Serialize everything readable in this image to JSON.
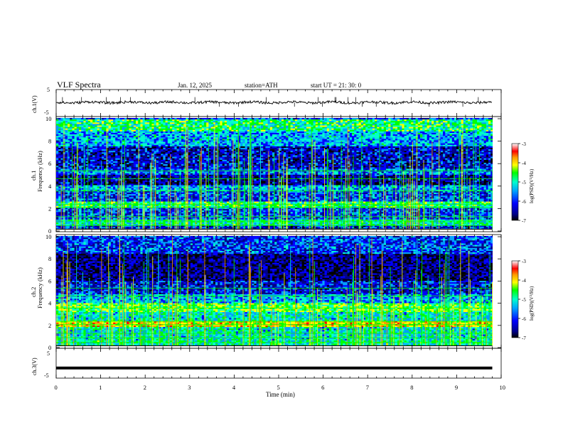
{
  "header": {
    "title": "VLF  Spectra",
    "date": "Jan.  12,  2025",
    "station": "station=ATH",
    "start": "start  UT  =    21: 30: 0"
  },
  "colors": {
    "colormap": [
      "#ffffff",
      "#ff0000",
      "#ff9900",
      "#ffff00",
      "#00ff00",
      "#00ffcc",
      "#00a0ff",
      "#0000ff",
      "#000088",
      "#000000"
    ],
    "waveform": "#000000",
    "axes": "#000000"
  },
  "chart_data": [
    {
      "type": "line",
      "panel": "ch1-waveform",
      "ylabel": "ch.1(V)",
      "ylim": [
        -5,
        5
      ],
      "yticks": [
        "5",
        "-5"
      ],
      "x_range_min": [
        0,
        9.8
      ],
      "level_v": 0.3,
      "peak_to_peak_v": 1.2
    },
    {
      "type": "heatmap",
      "panel": "ch1-spectrogram",
      "ylabel": "Frequency  (kHz)",
      "channel_label": "ch.1",
      "ylim": [
        0,
        10
      ],
      "yticks": [
        "0",
        "2",
        "4",
        "6",
        "8",
        "10"
      ],
      "x_range_min": [
        0,
        9.8
      ],
      "colorbar": {
        "label": "log(PSD)(V²/Hz)",
        "range": [
          -7,
          -3
        ],
        "ticks": [
          "-3",
          "-4",
          "-5",
          "-6",
          "-7"
        ]
      },
      "bands_khz_log_psd": [
        [
          0.0,
          0.5,
          -6.2
        ],
        [
          0.5,
          1.0,
          -5.2
        ],
        [
          1.0,
          2.0,
          -6.0
        ],
        [
          2.0,
          2.6,
          -5.0
        ],
        [
          2.6,
          3.5,
          -6.0
        ],
        [
          3.5,
          4.0,
          -5.6
        ],
        [
          4.0,
          5.0,
          -6.5
        ],
        [
          5.0,
          5.5,
          -5.8
        ],
        [
          5.5,
          7.5,
          -6.3
        ],
        [
          7.5,
          8.8,
          -5.6
        ],
        [
          8.8,
          10.0,
          -5.0
        ]
      ]
    },
    {
      "type": "heatmap",
      "panel": "ch2-spectrogram",
      "ylabel": "Frequency  (kHz)",
      "channel_label": "ch.2",
      "ylim": [
        0,
        10
      ],
      "yticks": [
        "0",
        "2",
        "4",
        "6",
        "8",
        "10"
      ],
      "x_range_min": [
        0,
        9.8
      ],
      "colorbar": {
        "label": "log(PSD)(V²/Hz)",
        "range": [
          -7,
          -3
        ],
        "ticks": [
          "-3",
          "-4",
          "-5",
          "-6",
          "-7"
        ]
      },
      "bands_khz_log_psd": [
        [
          0.0,
          0.6,
          -5.2
        ],
        [
          0.6,
          1.8,
          -5.3
        ],
        [
          1.8,
          2.3,
          -4.2
        ],
        [
          2.3,
          3.2,
          -5.3
        ],
        [
          3.2,
          4.0,
          -4.8
        ],
        [
          4.0,
          4.8,
          -5.6
        ],
        [
          4.8,
          6.0,
          -6.2
        ],
        [
          6.0,
          8.5,
          -6.6
        ],
        [
          8.5,
          10.0,
          -6.0
        ]
      ]
    },
    {
      "type": "line",
      "panel": "ch3-waveform",
      "ylabel": "ch.3(V)",
      "ylim": [
        -5,
        5
      ],
      "yticks": [
        "5",
        "-5"
      ],
      "x_range_min": [
        0,
        9.8
      ],
      "level_v": -2.0
    }
  ],
  "x_axis": {
    "label": "Time  (min)",
    "range": [
      0,
      10
    ],
    "ticks": [
      "0",
      "1",
      "2",
      "3",
      "4",
      "5",
      "6",
      "7",
      "8",
      "9",
      "10"
    ]
  }
}
